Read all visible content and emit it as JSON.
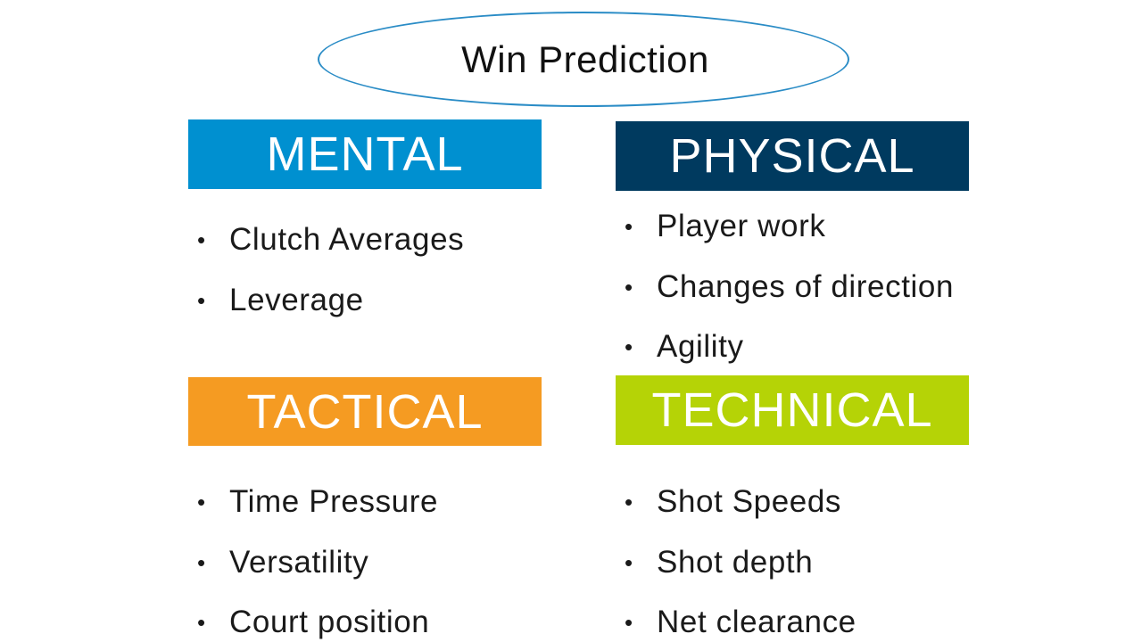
{
  "title": "Win Prediction",
  "colors": {
    "ellipse_border": "#2a8cc6",
    "mental": "#0090d0",
    "physical": "#003a5f",
    "tactical": "#f59b22",
    "technical": "#b5d306"
  },
  "categories": [
    {
      "key": "mental",
      "label": "MENTAL",
      "items": [
        "Clutch Averages",
        "Leverage"
      ]
    },
    {
      "key": "physical",
      "label": "PHYSICAL",
      "items": [
        "Player work",
        "Changes of direction",
        "Agility"
      ]
    },
    {
      "key": "tactical",
      "label": "TACTICAL",
      "items": [
        "Time Pressure",
        "Versatility",
        "Court position"
      ]
    },
    {
      "key": "technical",
      "label": "TECHNICAL",
      "items": [
        "Shot Speeds",
        "Shot depth",
        "Net clearance"
      ]
    }
  ],
  "bullet_glyph": "•"
}
